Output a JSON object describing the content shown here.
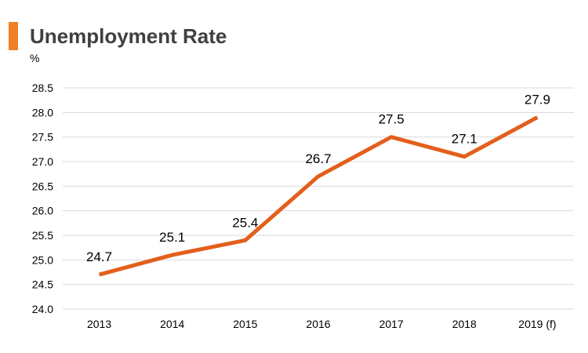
{
  "header": {
    "title": "Unemployment Rate",
    "unit": "%"
  },
  "colors": {
    "accent": "#F07F26",
    "line": "#E35F1C",
    "grid": "#D9D9D9",
    "title": "#404040"
  },
  "chart_data": {
    "type": "line",
    "title": "Unemployment Rate",
    "ylabel": "%",
    "xlabel": "",
    "categories": [
      "2013",
      "2014",
      "2015",
      "2016",
      "2017",
      "2018",
      "2019 (f)"
    ],
    "series": [
      {
        "values": [
          24.7,
          25.1,
          25.4,
          26.7,
          27.5,
          27.1,
          27.9
        ],
        "data_labels": [
          "24.7",
          "25.1",
          "25.4",
          "26.7",
          "27.5",
          "27.1",
          "27.9"
        ]
      }
    ],
    "ylim": [
      24.0,
      28.5
    ],
    "yticks": [
      "24.0",
      "24.5",
      "25.0",
      "25.5",
      "26.0",
      "26.5",
      "27.0",
      "27.5",
      "28.0",
      "28.5"
    ],
    "grid": true,
    "legend": "none"
  }
}
